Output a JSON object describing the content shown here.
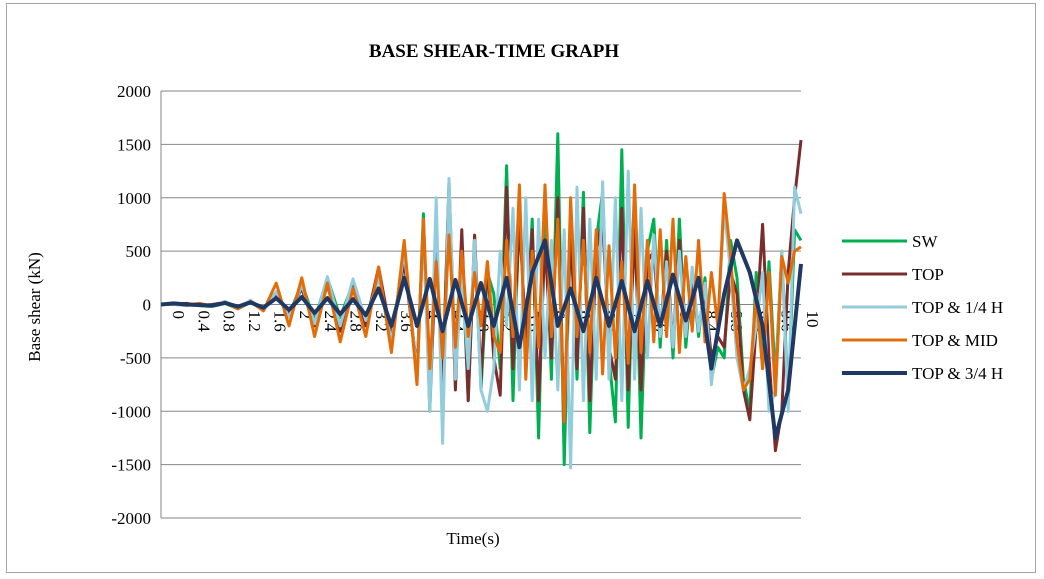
{
  "chart_data": {
    "type": "line",
    "title": "BASE SHEAR-TIME GRAPH",
    "xlabel": "Time(s)",
    "ylabel": "Base shear (kN)",
    "ylim": [
      -2000,
      2000
    ],
    "yticks": [
      -2000,
      -1500,
      -1000,
      -500,
      0,
      500,
      1000,
      1500,
      2000
    ],
    "xlim": [
      0,
      10
    ],
    "xtick_labels": [
      "0",
      "0.4",
      "0.8",
      "1.2",
      "1.6",
      "2",
      "2.4",
      "2.8",
      "3.2",
      "3.6",
      "4",
      "4.4",
      "4.8",
      "5.2",
      "5.6",
      "6",
      "6.4",
      "6.8",
      "7.2",
      "7.6",
      "8",
      "8.4",
      "8.8",
      "9.2",
      "9.6",
      "10"
    ],
    "grid": "horizontal",
    "legend_position": "right",
    "series": [
      {
        "name": "SW",
        "color": "#00b050",
        "x": [
          0,
          0.2,
          0.4,
          0.6,
          0.8,
          1.0,
          1.2,
          1.4,
          1.6,
          1.8,
          2.0,
          2.2,
          2.4,
          2.6,
          2.8,
          3.0,
          3.2,
          3.4,
          3.6,
          3.8,
          4.0,
          4.1,
          4.2,
          4.3,
          4.4,
          4.5,
          4.6,
          4.7,
          4.8,
          4.9,
          5.0,
          5.1,
          5.2,
          5.3,
          5.4,
          5.5,
          5.6,
          5.7,
          5.8,
          5.9,
          6.0,
          6.1,
          6.2,
          6.3,
          6.4,
          6.5,
          6.6,
          6.7,
          6.8,
          6.9,
          7.0,
          7.1,
          7.2,
          7.3,
          7.4,
          7.5,
          7.6,
          7.7,
          7.8,
          7.9,
          8.0,
          8.1,
          8.2,
          8.3,
          8.4,
          8.5,
          8.6,
          8.7,
          8.8,
          8.9,
          9.0,
          9.1,
          9.2,
          9.3,
          9.4,
          9.5,
          9.6,
          9.7,
          9.8,
          9.9,
          10.0
        ],
        "values": [
          0,
          10,
          0,
          -10,
          -20,
          10,
          -40,
          20,
          -50,
          90,
          -100,
          200,
          -150,
          250,
          -120,
          200,
          -150,
          300,
          -400,
          550,
          -700,
          850,
          -1000,
          600,
          -800,
          1150,
          -600,
          500,
          -900,
          600,
          -800,
          300,
          100,
          -600,
          1300,
          -900,
          950,
          -400,
          800,
          -1250,
          1000,
          -700,
          1600,
          -1500,
          800,
          -700,
          1050,
          -1200,
          600,
          1050,
          -500,
          -1100,
          1450,
          -1150,
          1000,
          -1250,
          500,
          800,
          -400,
          600,
          -500,
          800,
          -400,
          300,
          -300,
          250,
          -700,
          -400,
          -500,
          600,
          250,
          -700,
          -1000,
          300,
          -600,
          400,
          -700,
          500,
          -900,
          700,
          600
        ]
      },
      {
        "name": "TOP",
        "color": "#7b2c2c",
        "x": [
          0,
          0.2,
          0.4,
          0.6,
          0.8,
          1.0,
          1.2,
          1.4,
          1.6,
          1.8,
          2.0,
          2.2,
          2.4,
          2.6,
          2.8,
          3.0,
          3.2,
          3.4,
          3.6,
          3.8,
          4.0,
          4.1,
          4.2,
          4.3,
          4.4,
          4.5,
          4.6,
          4.7,
          4.8,
          4.9,
          5.0,
          5.1,
          5.2,
          5.3,
          5.4,
          5.5,
          5.6,
          5.7,
          5.8,
          5.9,
          6.0,
          6.1,
          6.2,
          6.3,
          6.4,
          6.5,
          6.6,
          6.7,
          6.8,
          6.9,
          7.0,
          7.1,
          7.2,
          7.3,
          7.4,
          7.5,
          7.6,
          7.7,
          7.8,
          7.9,
          8.0,
          8.1,
          8.2,
          8.3,
          8.4,
          8.5,
          8.6,
          8.7,
          8.8,
          8.9,
          9.0,
          9.1,
          9.2,
          9.3,
          9.4,
          9.5,
          9.6,
          9.7,
          9.8,
          9.9,
          10.0
        ],
        "values": [
          0,
          5,
          10,
          -10,
          0,
          20,
          -20,
          30,
          -40,
          100,
          -80,
          150,
          -200,
          180,
          -250,
          200,
          -200,
          350,
          -300,
          400,
          -600,
          700,
          -900,
          500,
          -700,
          1100,
          -800,
          700,
          -900,
          650,
          -700,
          400,
          -500,
          -850,
          1100,
          -600,
          800,
          -300,
          700,
          -900,
          600,
          -500,
          1000,
          -1100,
          700,
          -600,
          900,
          -900,
          500,
          800,
          -400,
          -700,
          900,
          -800,
          700,
          -800,
          400,
          500,
          -300,
          500,
          -400,
          600,
          -300,
          200,
          -200,
          100,
          -500,
          -300,
          -400,
          300,
          100,
          -800,
          -1080,
          -200,
          750,
          -500,
          -1370,
          -1000,
          300,
          1000,
          1540
        ]
      },
      {
        "name": "TOP & 1/4 H",
        "color": "#93cddd",
        "x": [
          0,
          0.2,
          0.4,
          0.6,
          0.8,
          1.0,
          1.2,
          1.4,
          1.6,
          1.8,
          2.0,
          2.2,
          2.4,
          2.6,
          2.8,
          3.0,
          3.2,
          3.4,
          3.6,
          3.8,
          4.0,
          4.1,
          4.2,
          4.3,
          4.4,
          4.5,
          4.6,
          4.7,
          4.8,
          4.9,
          5.0,
          5.1,
          5.2,
          5.3,
          5.4,
          5.5,
          5.6,
          5.7,
          5.8,
          5.9,
          6.0,
          6.1,
          6.2,
          6.3,
          6.4,
          6.5,
          6.6,
          6.7,
          6.8,
          6.9,
          7.0,
          7.1,
          7.2,
          7.3,
          7.4,
          7.5,
          7.6,
          7.7,
          7.8,
          7.9,
          8.0,
          8.1,
          8.2,
          8.3,
          8.4,
          8.5,
          8.6,
          8.7,
          8.8,
          8.9,
          9.0,
          9.1,
          9.2,
          9.3,
          9.4,
          9.5,
          9.6,
          9.7,
          9.8,
          9.9,
          10.0
        ],
        "values": [
          0,
          0,
          -10,
          10,
          -20,
          30,
          -30,
          40,
          -60,
          120,
          -120,
          180,
          -180,
          260,
          -200,
          240,
          -150,
          250,
          -350,
          500,
          -650,
          700,
          -1000,
          1000,
          -1300,
          1180,
          -700,
          300,
          -600,
          600,
          -800,
          -1000,
          -600,
          500,
          -200,
          900,
          -800,
          1000,
          -900,
          800,
          -500,
          600,
          -800,
          700,
          -1530,
          1100,
          -900,
          800,
          -700,
          1150,
          -700,
          1000,
          -900,
          1250,
          -700,
          900,
          -500,
          650,
          -300,
          400,
          -400,
          500,
          -300,
          350,
          -250,
          200,
          -750,
          -200,
          900,
          300,
          -500,
          -800,
          -600,
          -200,
          300,
          -1000,
          -800,
          500,
          -1000,
          1100,
          850
        ]
      },
      {
        "name": "TOP & MID",
        "color": "#e36c09",
        "x": [
          0,
          0.2,
          0.4,
          0.6,
          0.8,
          1.0,
          1.2,
          1.4,
          1.6,
          1.8,
          2.0,
          2.2,
          2.4,
          2.6,
          2.8,
          3.0,
          3.2,
          3.4,
          3.6,
          3.8,
          4.0,
          4.1,
          4.2,
          4.3,
          4.4,
          4.5,
          4.6,
          4.7,
          4.8,
          4.9,
          5.0,
          5.1,
          5.2,
          5.3,
          5.4,
          5.5,
          5.6,
          5.7,
          5.8,
          5.9,
          6.0,
          6.1,
          6.2,
          6.3,
          6.4,
          6.5,
          6.6,
          6.7,
          6.8,
          6.9,
          7.0,
          7.1,
          7.2,
          7.3,
          7.4,
          7.5,
          7.6,
          7.7,
          7.8,
          7.9,
          8.0,
          8.1,
          8.2,
          8.3,
          8.4,
          8.5,
          8.6,
          8.7,
          8.8,
          8.9,
          9.0,
          9.1,
          9.2,
          9.3,
          9.4,
          9.5,
          9.6,
          9.7,
          9.8,
          9.9,
          10.0
        ],
        "values": [
          0,
          5,
          -5,
          10,
          -15,
          20,
          -40,
          30,
          -60,
          200,
          -200,
          250,
          -300,
          200,
          -350,
          150,
          -300,
          350,
          -450,
          600,
          -750,
          800,
          -600,
          400,
          -500,
          650,
          -400,
          500,
          -300,
          300,
          -200,
          400,
          -300,
          -450,
          600,
          -300,
          1120,
          -700,
          500,
          -400,
          1120,
          -300,
          800,
          -1100,
          1000,
          -300,
          600,
          -450,
          700,
          -650,
          550,
          -500,
          400,
          -550,
          1120,
          -450,
          600,
          -350,
          700,
          -300,
          800,
          -450,
          450,
          -250,
          600,
          -350,
          300,
          -200,
          1040,
          450,
          -350,
          -800,
          -700,
          100,
          -600,
          300,
          -850,
          450,
          200,
          500,
          540
        ]
      },
      {
        "name": "TOP & 3/4 H",
        "color": "#1f3864",
        "x": [
          0,
          0.2,
          0.4,
          0.6,
          0.8,
          1.0,
          1.2,
          1.4,
          1.6,
          1.8,
          2.0,
          2.2,
          2.4,
          2.6,
          2.8,
          3.0,
          3.2,
          3.4,
          3.6,
          3.8,
          4.0,
          4.2,
          4.4,
          4.6,
          4.8,
          5.0,
          5.2,
          5.4,
          5.6,
          5.8,
          6.0,
          6.2,
          6.4,
          6.6,
          6.8,
          7.0,
          7.2,
          7.4,
          7.6,
          7.8,
          8.0,
          8.2,
          8.4,
          8.6,
          8.8,
          9.0,
          9.2,
          9.4,
          9.6,
          9.8,
          10.0
        ],
        "values": [
          0,
          10,
          0,
          -5,
          -10,
          15,
          -20,
          20,
          -30,
          60,
          -50,
          70,
          -80,
          60,
          -90,
          50,
          -100,
          150,
          -200,
          250,
          -200,
          240,
          -250,
          230,
          -200,
          200,
          -200,
          250,
          -400,
          300,
          600,
          -200,
          150,
          -250,
          250,
          -200,
          220,
          -250,
          220,
          -200,
          280,
          -150,
          250,
          -600,
          100,
          600,
          300,
          -200,
          -1250,
          -800,
          380
        ]
      }
    ]
  }
}
